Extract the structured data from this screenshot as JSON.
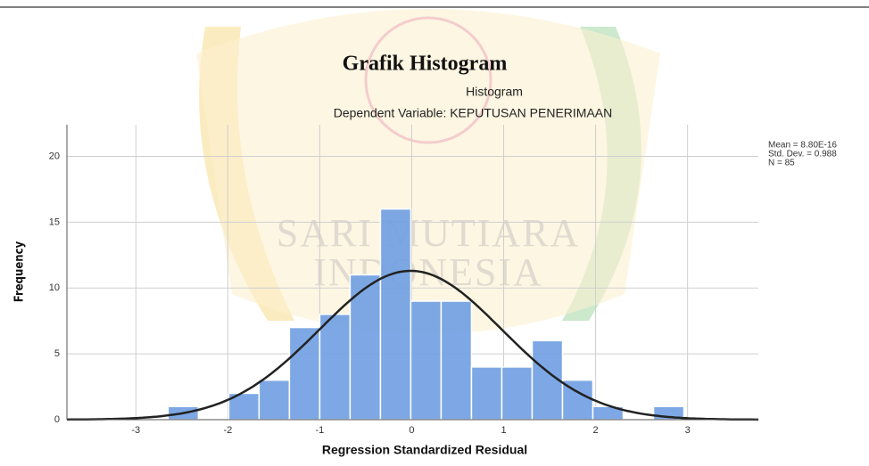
{
  "chart_data": {
    "type": "histogram",
    "title": "Grafik Histogram",
    "subtitle": "Histogram",
    "subtitle2": "Dependent Variable: KEPUTUSAN PENERIMAAN",
    "stats": [
      "Mean = 8.80E-16",
      "Std. Dev. = 0.988",
      "N = 85"
    ],
    "x_label": "Regression Standardized Residual",
    "y_label": "Frequency",
    "watermark": [
      "SARI MUTIARA",
      "INDONESIA"
    ],
    "bins": [
      -2.65,
      -2.32,
      -1.99,
      -1.66,
      -1.33,
      -1.0,
      -0.67,
      -0.34,
      -0.01,
      0.32,
      0.65,
      0.98,
      1.31,
      1.64,
      1.97,
      2.3,
      2.63,
      2.96
    ],
    "values": [
      1,
      0,
      2,
      3,
      7,
      8,
      11,
      16,
      9,
      9,
      4,
      4,
      6,
      3,
      1,
      0,
      1
    ],
    "color": "#6f9fe2",
    "curve_color": "#222222",
    "xlim": [
      -3.75,
      3.77
    ],
    "xticks": [
      -3,
      -2,
      -1,
      0,
      1,
      2,
      3
    ],
    "ylim": [
      0,
      22.4
    ],
    "yticks": [
      0,
      5,
      10,
      15,
      20
    ],
    "grid": true
  }
}
